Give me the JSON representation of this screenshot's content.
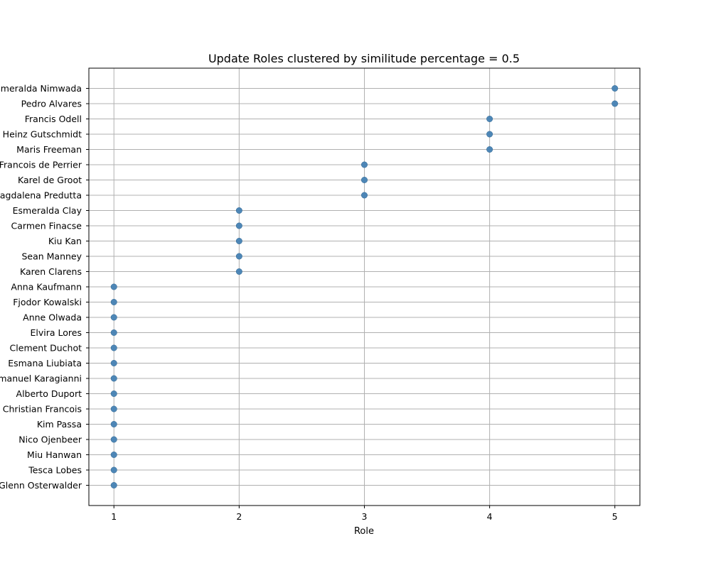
{
  "chart_data": {
    "type": "scatter",
    "title": "Update Roles clustered by similitude percentage = 0.5",
    "xlabel": "Role",
    "ylabel": "",
    "xlim": [
      0.8,
      5.2
    ],
    "xticks": [
      1,
      2,
      3,
      4,
      5
    ],
    "grid": true,
    "marker_color": "#4682b4",
    "grid_color": "#b0b0b0",
    "categories_top_to_bottom": [
      "Esmeralda Nimwada",
      "Pedro Alvares",
      "Francis Odell",
      "Heinz Gutschmidt",
      "Maris Freeman",
      "Francois de Perrier",
      "Karel de Groot",
      "Magdalena Predutta",
      "Esmeralda Clay",
      "Carmen Finacse",
      "Kiu Kan",
      "Sean Manney",
      "Karen Clarens",
      "Anna Kaufmann",
      "Fjodor Kowalski",
      "Anne Olwada",
      "Elvira Lores",
      "Clement Duchot",
      "Esmana Liubiata",
      "Emanuel Karagianni",
      "Alberto Duport",
      "Christian Francois",
      "Kim Passa",
      "Nico Ojenbeer",
      "Miu Hanwan",
      "Tesca Lobes",
      "Glenn Osterwalder"
    ],
    "values": [
      5,
      5,
      4,
      4,
      4,
      3,
      3,
      3,
      2,
      2,
      2,
      2,
      2,
      1,
      1,
      1,
      1,
      1,
      1,
      1,
      1,
      1,
      1,
      1,
      1,
      1,
      1
    ]
  }
}
